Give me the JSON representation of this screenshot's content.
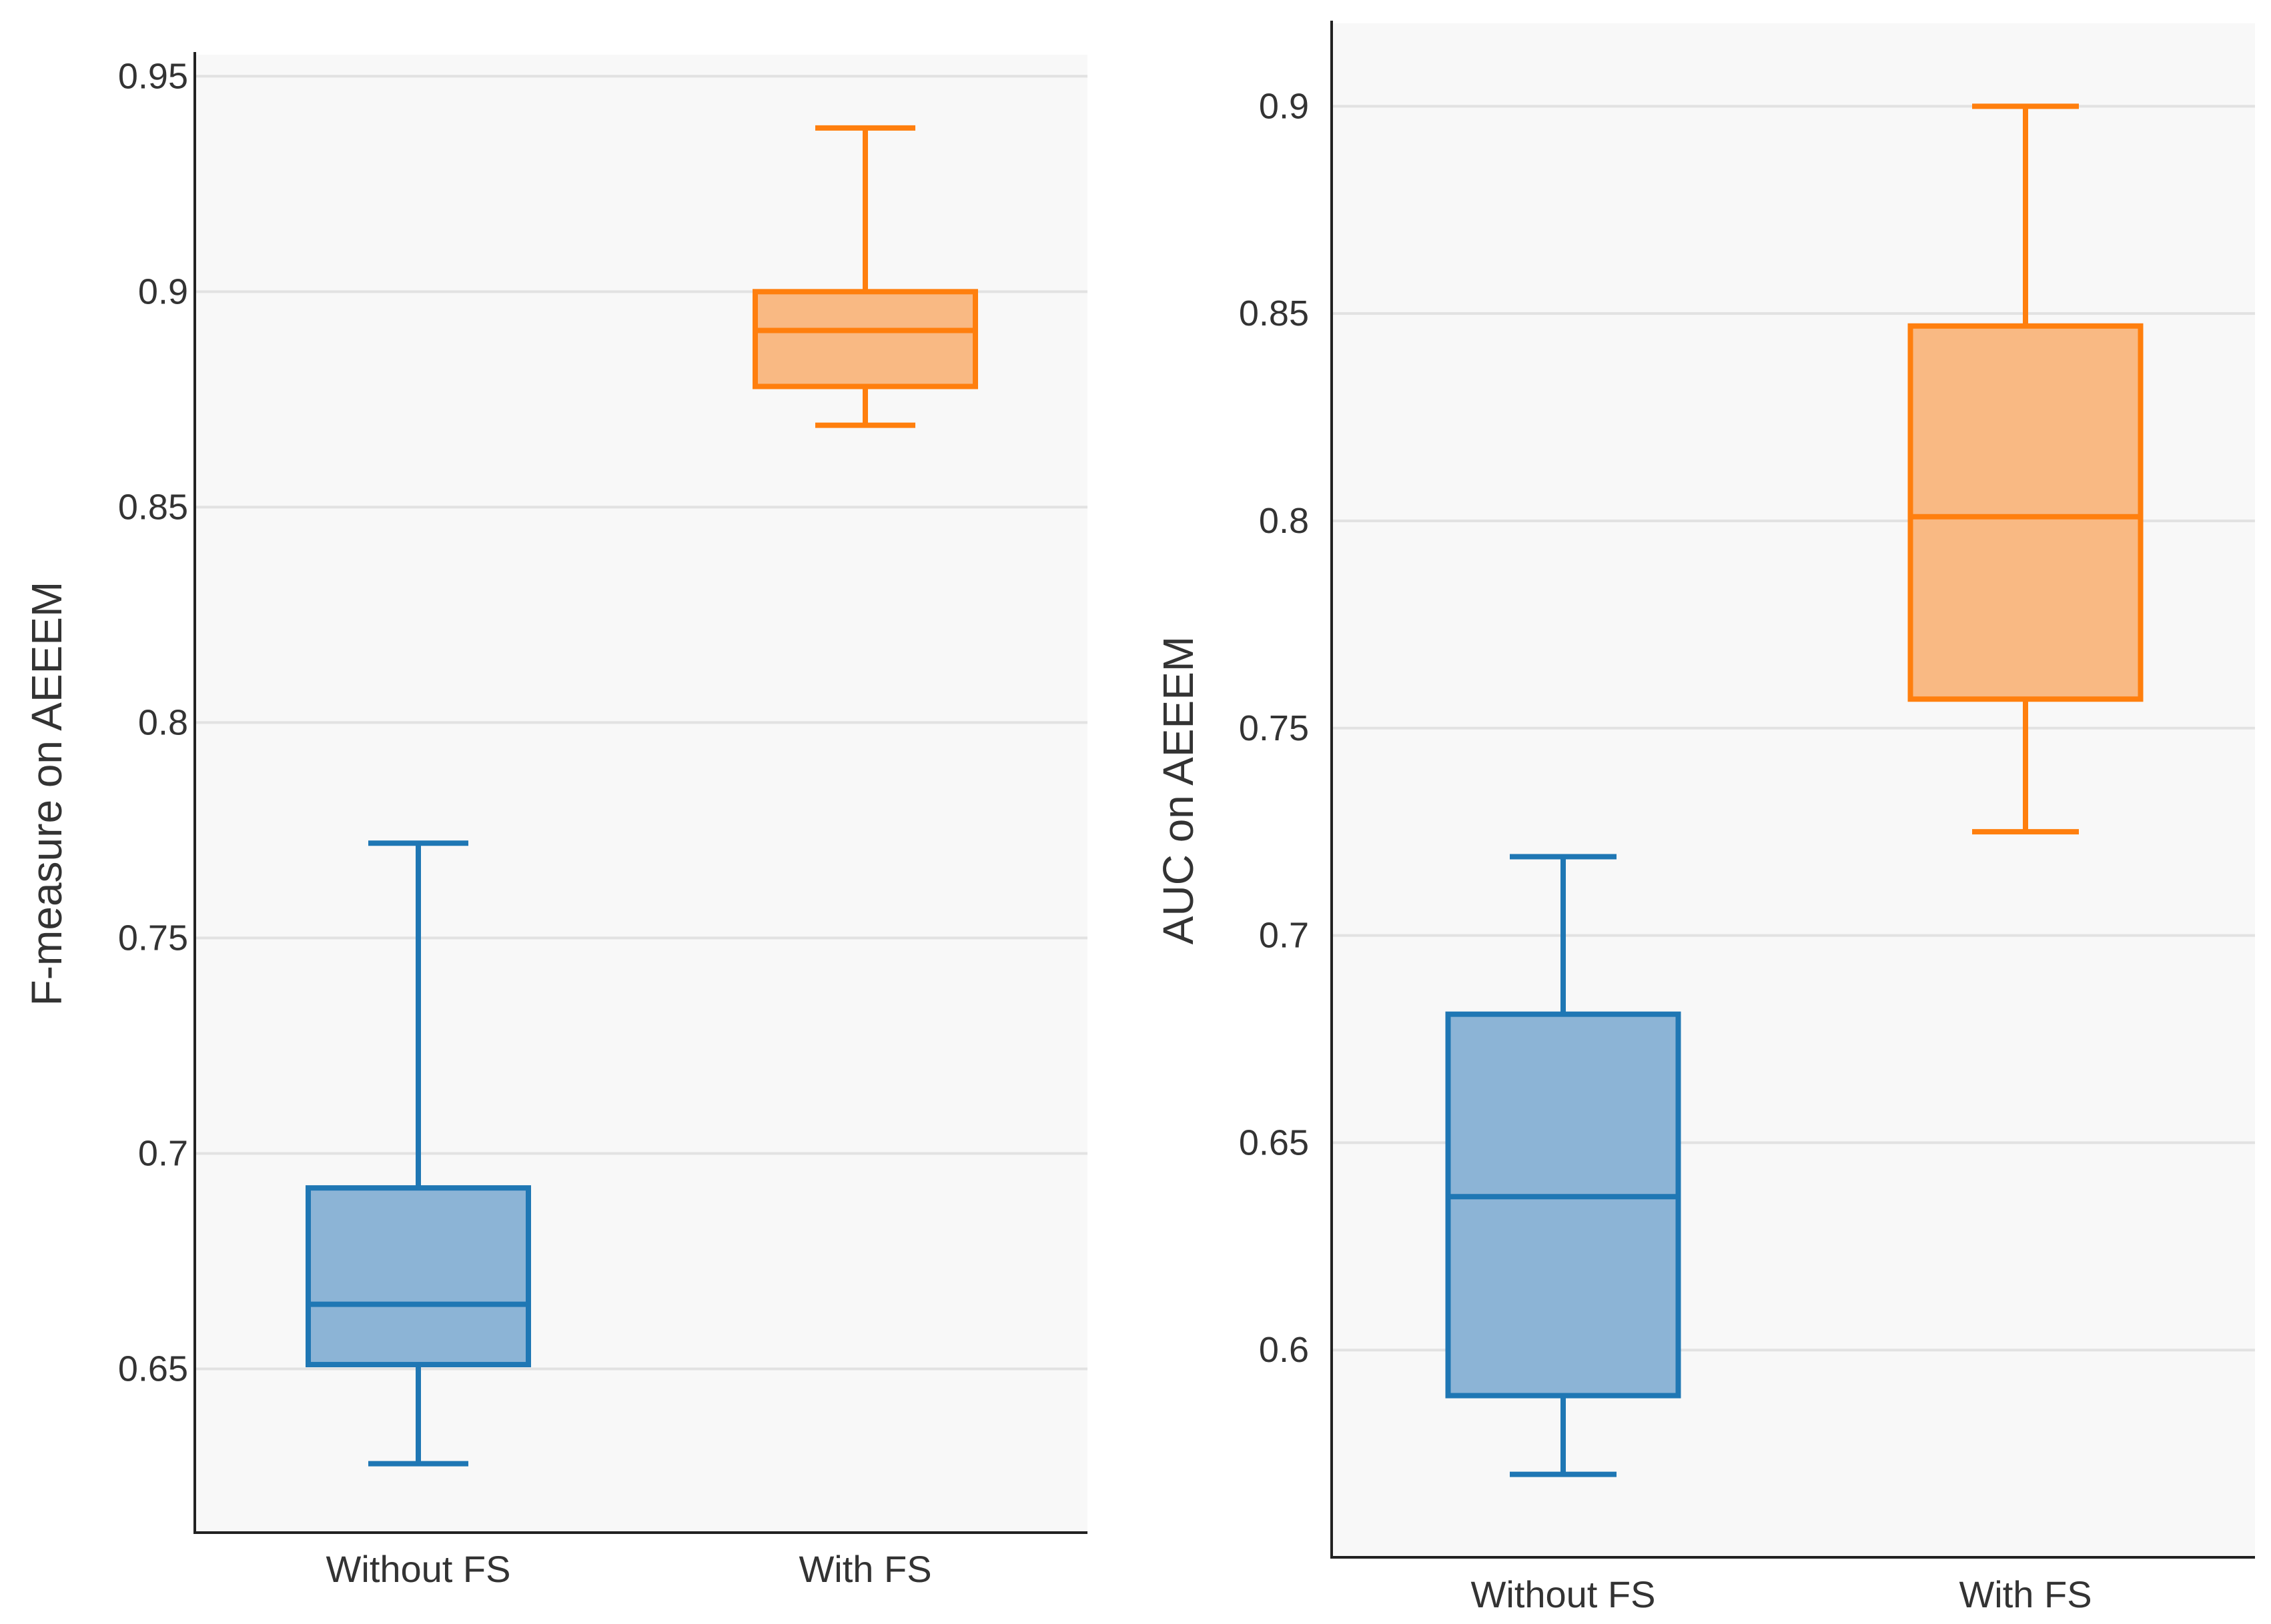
{
  "chart_data": [
    {
      "type": "box",
      "title": "",
      "xlabel": "",
      "ylabel": "F-measure on AEEEM",
      "ylim": [
        0.612,
        0.955
      ],
      "yticks": [
        0.65,
        0.7,
        0.75,
        0.8,
        0.85,
        0.9,
        0.95
      ],
      "ytick_labels": [
        "0.65",
        "0.7",
        "0.75",
        "0.8",
        "0.85",
        "0.9",
        "0.95"
      ],
      "grid": true,
      "categories": [
        "Without FS",
        "With FS"
      ],
      "series": [
        {
          "name": "Without FS",
          "color": "#1f77b4",
          "fill": "#8cb4d6",
          "min": 0.628,
          "q1": 0.651,
          "median": 0.665,
          "q3": 0.692,
          "max": 0.772
        },
        {
          "name": "With FS",
          "color": "#ff7f0e",
          "fill": "#f9b983",
          "min": 0.869,
          "q1": 0.878,
          "median": 0.891,
          "q3": 0.9,
          "max": 0.938
        }
      ]
    },
    {
      "type": "box",
      "title": "",
      "xlabel": "",
      "ylabel": "AUC on AEEEM",
      "ylim": [
        0.55,
        0.92
      ],
      "yticks": [
        0.6,
        0.65,
        0.7,
        0.75,
        0.8,
        0.85,
        0.9
      ],
      "ytick_labels": [
        "0.6",
        "0.65",
        "0.7",
        "0.75",
        "0.8",
        "0.85",
        "0.9"
      ],
      "grid": true,
      "categories": [
        "Without FS",
        "With FS"
      ],
      "series": [
        {
          "name": "Without FS",
          "color": "#1f77b4",
          "fill": "#8cb4d6",
          "min": 0.57,
          "q1": 0.589,
          "median": 0.637,
          "q3": 0.681,
          "max": 0.719
        },
        {
          "name": "With FS",
          "color": "#ff7f0e",
          "fill": "#f9b983",
          "min": 0.725,
          "q1": 0.757,
          "median": 0.801,
          "q3": 0.847,
          "max": 0.9
        }
      ]
    }
  ]
}
